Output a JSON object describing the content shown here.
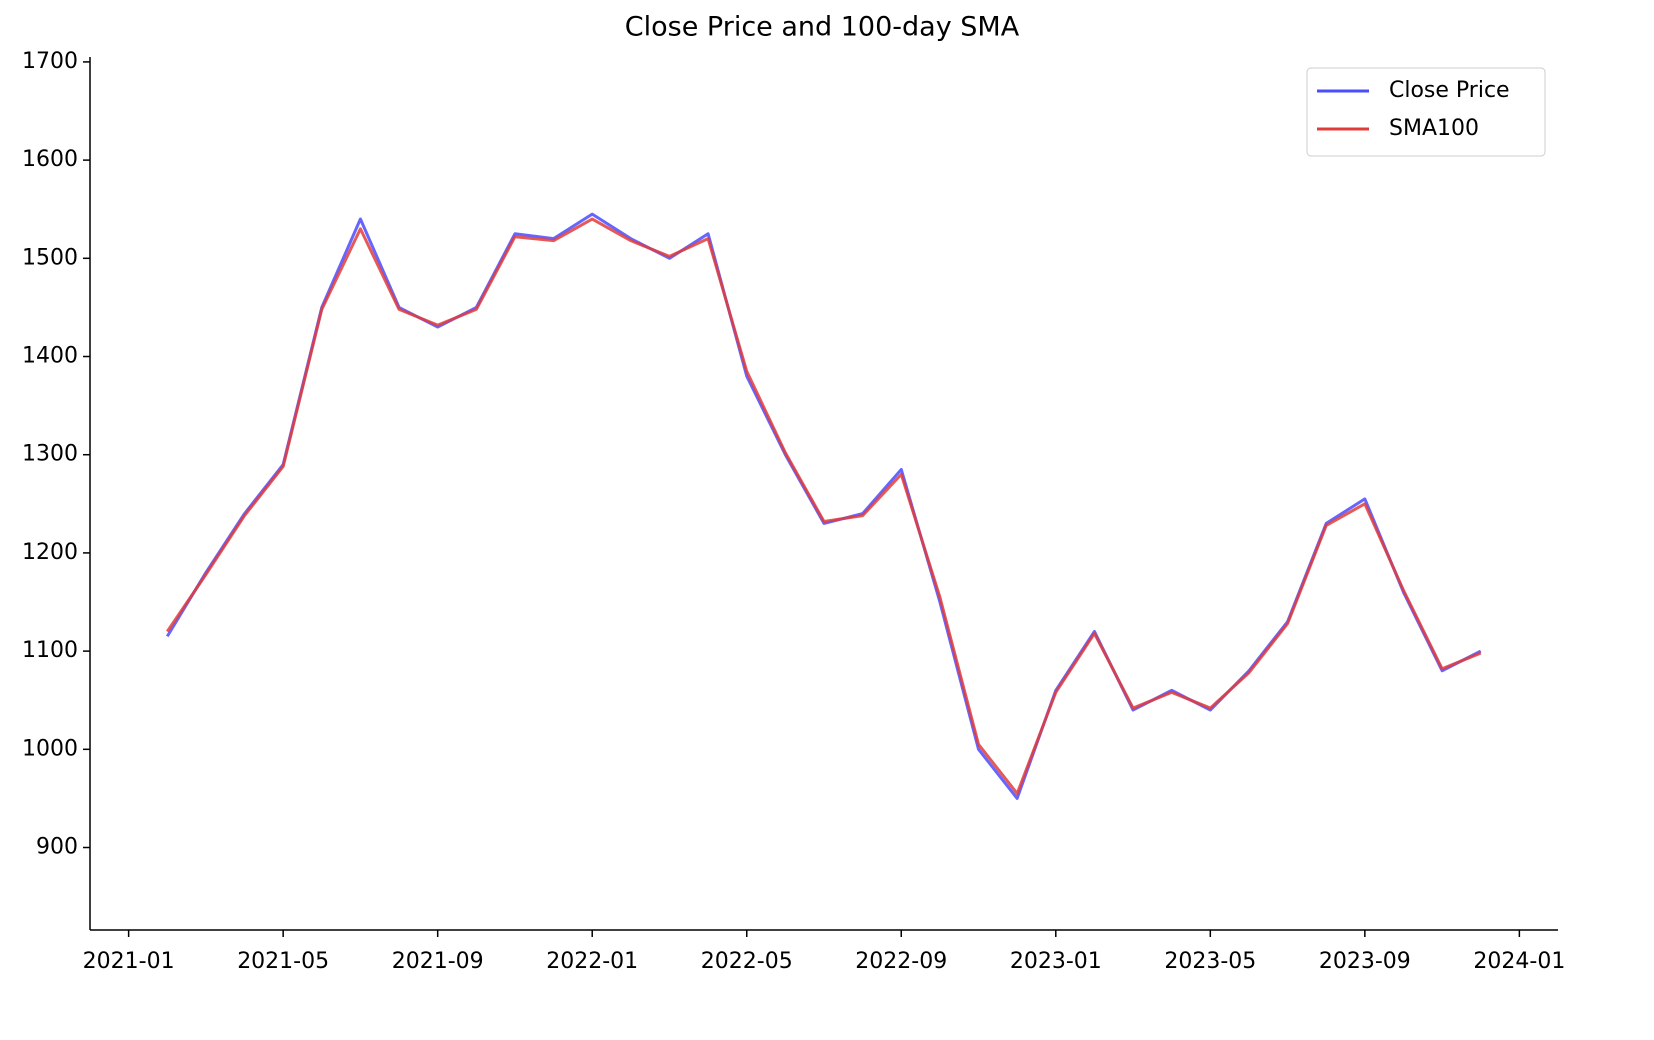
{
  "chart_data": {
    "type": "line",
    "title": "Close Price and 100-day SMA",
    "x": [
      "2021-02",
      "2021-03",
      "2021-04",
      "2021-05",
      "2021-06",
      "2021-07",
      "2021-08",
      "2021-09",
      "2021-10",
      "2021-11",
      "2021-12",
      "2022-01",
      "2022-02",
      "2022-03",
      "2022-04",
      "2022-05",
      "2022-06",
      "2022-07",
      "2022-08",
      "2022-09",
      "2022-10",
      "2022-11",
      "2022-12",
      "2023-01",
      "2023-02",
      "2023-03",
      "2023-04",
      "2023-05",
      "2023-06",
      "2023-07",
      "2023-08",
      "2023-09",
      "2023-10",
      "2023-11",
      "2023-12"
    ],
    "series": [
      {
        "name": "Close Price",
        "color": "#4b4bff",
        "values": [
          1115,
          1180,
          1240,
          1290,
          1450,
          1540,
          1450,
          1430,
          1450,
          1525,
          1520,
          1545,
          1520,
          1500,
          1525,
          1380,
          1300,
          1230,
          1240,
          1285,
          1150,
          1000,
          950,
          1060,
          1120,
          1040,
          1060,
          1040,
          1080,
          1130,
          1230,
          1255,
          1160,
          1080,
          1100
        ]
      },
      {
        "name": "SMA100",
        "color": "#e03c3c",
        "values": [
          1120,
          1178,
          1238,
          1288,
          1448,
          1530,
          1448,
          1432,
          1448,
          1522,
          1518,
          1540,
          1518,
          1502,
          1520,
          1385,
          1302,
          1232,
          1238,
          1280,
          1155,
          1005,
          955,
          1058,
          1118,
          1042,
          1058,
          1042,
          1078,
          1128,
          1228,
          1250,
          1162,
          1082,
          1098
        ]
      }
    ],
    "xlim": [
      "2020-12",
      "2024-02"
    ],
    "xticks": [
      "2021-01",
      "2021-05",
      "2021-09",
      "2022-01",
      "2022-05",
      "2022-09",
      "2023-01",
      "2023-05",
      "2023-09",
      "2024-01"
    ],
    "ylim": [
      816,
      1705
    ],
    "yticks": [
      900,
      1000,
      1100,
      1200,
      1300,
      1400,
      1500,
      1600,
      1700
    ],
    "legend": "upper-right",
    "grid": false
  }
}
